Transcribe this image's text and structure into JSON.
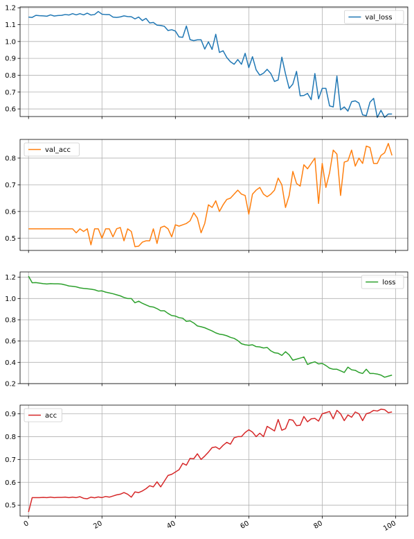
{
  "chart_data": [
    {
      "type": "line",
      "series": [
        {
          "name": "val_loss",
          "color": "#1f77b4",
          "x": [
            0,
            1,
            2,
            3,
            4,
            5,
            6,
            7,
            8,
            9,
            10,
            11,
            12,
            13,
            14,
            15,
            16,
            17,
            18,
            19,
            20,
            21,
            22,
            23,
            24,
            25,
            26,
            27,
            28,
            29,
            30,
            31,
            32,
            33,
            34,
            35,
            36,
            37,
            38,
            39,
            40,
            41,
            42,
            43,
            44,
            45,
            46,
            47,
            48,
            49,
            50,
            51,
            52,
            53,
            54,
            55,
            56,
            57,
            58,
            59,
            60,
            61,
            62,
            63,
            64,
            65,
            66,
            67,
            68,
            69,
            70,
            71,
            72,
            73,
            74,
            75,
            76,
            77,
            78,
            79,
            80,
            81,
            82,
            83,
            84,
            85,
            86,
            87,
            88,
            89,
            90,
            91,
            92,
            93,
            94,
            95,
            96,
            97,
            98,
            99
          ],
          "values": [
            1.145,
            1.143,
            1.155,
            1.153,
            1.152,
            1.15,
            1.158,
            1.151,
            1.154,
            1.155,
            1.16,
            1.157,
            1.165,
            1.158,
            1.165,
            1.158,
            1.168,
            1.157,
            1.16,
            1.178,
            1.162,
            1.16,
            1.16,
            1.145,
            1.143,
            1.146,
            1.152,
            1.148,
            1.147,
            1.134,
            1.145,
            1.124,
            1.137,
            1.11,
            1.113,
            1.097,
            1.095,
            1.09,
            1.065,
            1.07,
            1.062,
            1.027,
            1.025,
            1.092,
            1.011,
            1.005,
            1.01,
            1.01,
            0.955,
            0.998,
            0.953,
            1.043,
            0.935,
            0.945,
            0.905,
            0.88,
            0.865,
            0.893,
            0.865,
            0.93,
            0.845,
            0.91,
            0.832,
            0.8,
            0.812,
            0.835,
            0.81,
            0.763,
            0.772,
            0.907,
            0.808,
            0.722,
            0.748,
            0.823,
            0.678,
            0.68,
            0.692,
            0.655,
            0.81,
            0.66,
            0.722,
            0.722,
            0.618,
            0.612,
            0.795,
            0.595,
            0.612,
            0.587,
            0.643,
            0.648,
            0.635,
            0.565,
            0.56,
            0.64,
            0.663,
            0.55,
            0.592,
            0.55,
            0.57,
            0.57
          ]
        }
      ],
      "x_range": [
        -2.3,
        103.3
      ],
      "ylim": [
        0.555,
        1.205
      ],
      "y_ticks": [
        0.6,
        0.7,
        0.8,
        0.9,
        1.0,
        1.1,
        1.2
      ],
      "y_tick_labels": [
        "0.6",
        "0.7",
        "0.8",
        "0.9",
        "1.0",
        "1.1",
        "1.2"
      ],
      "grid": true,
      "legend": "upper right"
    },
    {
      "type": "line",
      "series": [
        {
          "name": "val_acc",
          "color": "#ff7f0e",
          "x": [
            0,
            1,
            2,
            3,
            4,
            5,
            6,
            7,
            8,
            9,
            10,
            11,
            12,
            13,
            14,
            15,
            16,
            17,
            18,
            19,
            20,
            21,
            22,
            23,
            24,
            25,
            26,
            27,
            28,
            29,
            30,
            31,
            32,
            33,
            34,
            35,
            36,
            37,
            38,
            39,
            40,
            41,
            42,
            43,
            44,
            45,
            46,
            47,
            48,
            49,
            50,
            51,
            52,
            53,
            54,
            55,
            56,
            57,
            58,
            59,
            60,
            61,
            62,
            63,
            64,
            65,
            66,
            67,
            68,
            69,
            70,
            71,
            72,
            73,
            74,
            75,
            76,
            77,
            78,
            79,
            80,
            81,
            82,
            83,
            84,
            85,
            86,
            87,
            88,
            89,
            90,
            91,
            92,
            93,
            94,
            95,
            96,
            97,
            98,
            99
          ],
          "values": [
            0.535,
            0.535,
            0.535,
            0.535,
            0.535,
            0.535,
            0.535,
            0.535,
            0.535,
            0.535,
            0.535,
            0.535,
            0.535,
            0.52,
            0.535,
            0.525,
            0.535,
            0.475,
            0.535,
            0.535,
            0.5,
            0.535,
            0.535,
            0.505,
            0.535,
            0.54,
            0.49,
            0.535,
            0.525,
            0.468,
            0.47,
            0.485,
            0.49,
            0.49,
            0.535,
            0.48,
            0.54,
            0.545,
            0.535,
            0.505,
            0.55,
            0.545,
            0.55,
            0.555,
            0.565,
            0.595,
            0.575,
            0.52,
            0.555,
            0.625,
            0.615,
            0.64,
            0.6,
            0.625,
            0.645,
            0.65,
            0.665,
            0.68,
            0.665,
            0.66,
            0.59,
            0.665,
            0.68,
            0.69,
            0.665,
            0.655,
            0.665,
            0.68,
            0.725,
            0.7,
            0.615,
            0.66,
            0.75,
            0.705,
            0.695,
            0.775,
            0.76,
            0.78,
            0.8,
            0.63,
            0.78,
            0.69,
            0.745,
            0.83,
            0.815,
            0.66,
            0.785,
            0.79,
            0.83,
            0.77,
            0.8,
            0.78,
            0.845,
            0.84,
            0.78,
            0.78,
            0.81,
            0.82,
            0.855,
            0.81
          ]
        }
      ],
      "x_range": [
        -2.3,
        103.3
      ],
      "ylim": [
        0.454,
        0.87
      ],
      "y_ticks": [
        0.5,
        0.6,
        0.7,
        0.8
      ],
      "y_tick_labels": [
        "0.5",
        "0.6",
        "0.7",
        "0.8"
      ],
      "grid": true,
      "legend": "upper left"
    },
    {
      "type": "line",
      "series": [
        {
          "name": "loss",
          "color": "#2ca02c",
          "x": [
            0,
            1,
            2,
            3,
            4,
            5,
            6,
            7,
            8,
            9,
            10,
            11,
            12,
            13,
            14,
            15,
            16,
            17,
            18,
            19,
            20,
            21,
            22,
            23,
            24,
            25,
            26,
            27,
            28,
            29,
            30,
            31,
            32,
            33,
            34,
            35,
            36,
            37,
            38,
            39,
            40,
            41,
            42,
            43,
            44,
            45,
            46,
            47,
            48,
            49,
            50,
            51,
            52,
            53,
            54,
            55,
            56,
            57,
            58,
            59,
            60,
            61,
            62,
            63,
            64,
            65,
            66,
            67,
            68,
            69,
            70,
            71,
            72,
            73,
            74,
            75,
            76,
            77,
            78,
            79,
            80,
            81,
            82,
            83,
            84,
            85,
            86,
            87,
            88,
            89,
            90,
            91,
            92,
            93,
            94,
            95,
            96,
            97,
            98,
            99
          ],
          "values": [
            1.21,
            1.148,
            1.15,
            1.145,
            1.14,
            1.137,
            1.14,
            1.138,
            1.138,
            1.136,
            1.128,
            1.118,
            1.115,
            1.11,
            1.1,
            1.095,
            1.092,
            1.088,
            1.082,
            1.07,
            1.072,
            1.06,
            1.053,
            1.045,
            1.035,
            1.025,
            1.01,
            1.0,
            1.0,
            0.96,
            0.975,
            0.955,
            0.94,
            0.925,
            0.92,
            0.905,
            0.885,
            0.885,
            0.86,
            0.84,
            0.835,
            0.82,
            0.815,
            0.785,
            0.79,
            0.77,
            0.742,
            0.735,
            0.725,
            0.71,
            0.695,
            0.677,
            0.665,
            0.66,
            0.65,
            0.635,
            0.625,
            0.605,
            0.575,
            0.565,
            0.56,
            0.565,
            0.548,
            0.545,
            0.535,
            0.54,
            0.508,
            0.49,
            0.485,
            0.465,
            0.5,
            0.47,
            0.42,
            0.43,
            0.44,
            0.45,
            0.38,
            0.395,
            0.405,
            0.385,
            0.39,
            0.37,
            0.345,
            0.335,
            0.335,
            0.32,
            0.305,
            0.355,
            0.33,
            0.325,
            0.305,
            0.295,
            0.335,
            0.295,
            0.295,
            0.29,
            0.28,
            0.26,
            0.27,
            0.28
          ]
        }
      ],
      "x_range": [
        -2.3,
        103.3
      ],
      "ylim": [
        0.2,
        1.25
      ],
      "y_ticks": [
        0.2,
        0.4,
        0.6,
        0.8,
        1.0,
        1.2
      ],
      "y_tick_labels": [
        "0.2",
        "0.4",
        "0.6",
        "0.8",
        "1.0",
        "1.2"
      ],
      "grid": true,
      "legend": "upper right"
    },
    {
      "type": "line",
      "series": [
        {
          "name": "acc",
          "color": "#d62728",
          "x": [
            0,
            1,
            2,
            3,
            4,
            5,
            6,
            7,
            8,
            9,
            10,
            11,
            12,
            13,
            14,
            15,
            16,
            17,
            18,
            19,
            20,
            21,
            22,
            23,
            24,
            25,
            26,
            27,
            28,
            29,
            30,
            31,
            32,
            33,
            34,
            35,
            36,
            37,
            38,
            39,
            40,
            41,
            42,
            43,
            44,
            45,
            46,
            47,
            48,
            49,
            50,
            51,
            52,
            53,
            54,
            55,
            56,
            57,
            58,
            59,
            60,
            61,
            62,
            63,
            64,
            65,
            66,
            67,
            68,
            69,
            70,
            71,
            72,
            73,
            74,
            75,
            76,
            77,
            78,
            79,
            80,
            81,
            82,
            83,
            84,
            85,
            86,
            87,
            88,
            89,
            90,
            91,
            92,
            93,
            94,
            95,
            96,
            97,
            98,
            99
          ],
          "values": [
            0.47,
            0.533,
            0.533,
            0.533,
            0.534,
            0.533,
            0.535,
            0.533,
            0.534,
            0.534,
            0.535,
            0.533,
            0.535,
            0.533,
            0.537,
            0.53,
            0.528,
            0.535,
            0.532,
            0.536,
            0.533,
            0.538,
            0.535,
            0.54,
            0.545,
            0.548,
            0.555,
            0.548,
            0.535,
            0.558,
            0.555,
            0.562,
            0.572,
            0.585,
            0.58,
            0.602,
            0.58,
            0.605,
            0.63,
            0.635,
            0.645,
            0.655,
            0.683,
            0.675,
            0.705,
            0.703,
            0.725,
            0.7,
            0.715,
            0.732,
            0.752,
            0.755,
            0.745,
            0.762,
            0.775,
            0.767,
            0.795,
            0.8,
            0.8,
            0.818,
            0.83,
            0.82,
            0.8,
            0.815,
            0.8,
            0.845,
            0.835,
            0.825,
            0.875,
            0.828,
            0.835,
            0.875,
            0.872,
            0.848,
            0.85,
            0.888,
            0.865,
            0.878,
            0.88,
            0.868,
            0.9,
            0.905,
            0.91,
            0.878,
            0.915,
            0.9,
            0.87,
            0.895,
            0.885,
            0.908,
            0.9,
            0.87,
            0.9,
            0.905,
            0.915,
            0.912,
            0.92,
            0.918,
            0.905,
            0.908
          ]
        }
      ],
      "x_range": [
        -2.3,
        103.3
      ],
      "ylim": [
        0.452,
        0.938
      ],
      "y_ticks": [
        0.5,
        0.6,
        0.7,
        0.8,
        0.9
      ],
      "y_tick_labels": [
        "0.5",
        "0.6",
        "0.7",
        "0.8",
        "0.9"
      ],
      "grid": true,
      "legend": "upper left"
    }
  ],
  "x_axis": {
    "ticks": [
      0,
      20,
      40,
      60,
      80,
      100
    ],
    "tick_labels": [
      "0",
      "20",
      "40",
      "60",
      "80",
      "100"
    ]
  }
}
